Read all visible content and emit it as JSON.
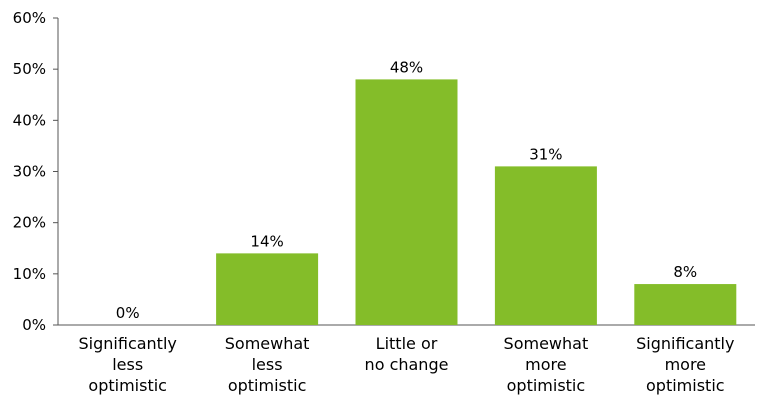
{
  "chart_data": {
    "type": "bar",
    "categories": [
      [
        "Significantly",
        "less",
        "optimistic"
      ],
      [
        "Somewhat",
        "less",
        "optimistic"
      ],
      [
        "Little or",
        "no change"
      ],
      [
        "Somewhat",
        "more",
        "optimistic"
      ],
      [
        "Significantly",
        "more",
        "optimistic"
      ]
    ],
    "values": [
      0,
      14,
      48,
      31,
      8
    ],
    "data_labels": [
      "0%",
      "14%",
      "48%",
      "31%",
      "8%"
    ],
    "ylim": [
      0,
      60
    ],
    "yticks": [
      0,
      10,
      20,
      30,
      40,
      50,
      60
    ],
    "ytick_labels": [
      "0%",
      "10%",
      "20%",
      "30%",
      "40%",
      "50%",
      "60%"
    ],
    "grid": false,
    "legend": "none",
    "bar_color": "#84bd29",
    "axis_color": "#555555"
  }
}
